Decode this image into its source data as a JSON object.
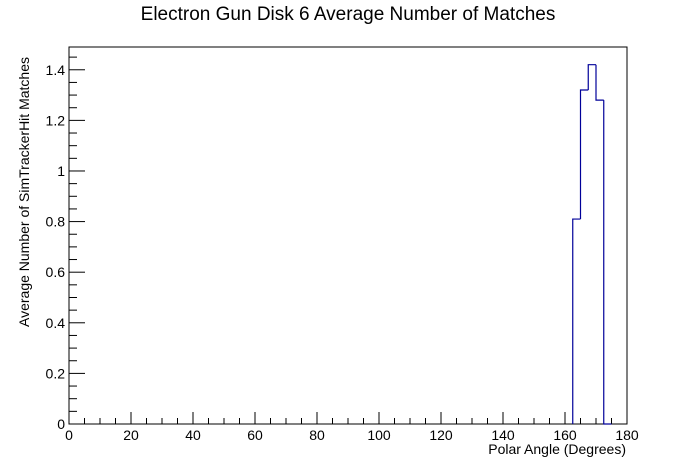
{
  "chart_data": {
    "type": "bar",
    "style": "step-histogram",
    "title": "Electron Gun Disk 6 Average Number of Matches",
    "xlabel": "Polar Angle (Degrees)",
    "ylabel": "Average Number of SimTrackerHit Matches",
    "xlim": [
      0,
      180
    ],
    "ylim": [
      0,
      1.49
    ],
    "xticks": [
      "0",
      "20",
      "40",
      "60",
      "80",
      "100",
      "120",
      "140",
      "160",
      "180"
    ],
    "yticks": [
      "0",
      "0.2",
      "0.4",
      "0.6",
      "0.8",
      "1",
      "1.2",
      "1.4"
    ],
    "bins": [
      {
        "x0": 162.5,
        "x1": 165,
        "value": 0.81
      },
      {
        "x0": 165,
        "x1": 167.5,
        "value": 1.32
      },
      {
        "x0": 167.5,
        "x1": 170,
        "value": 1.42
      },
      {
        "x0": 170,
        "x1": 172.5,
        "value": 1.28
      },
      {
        "x0": 172.5,
        "x1": 175,
        "value": 0.0
      }
    ],
    "line_color": "#000099",
    "grid": false,
    "legend": "none"
  }
}
